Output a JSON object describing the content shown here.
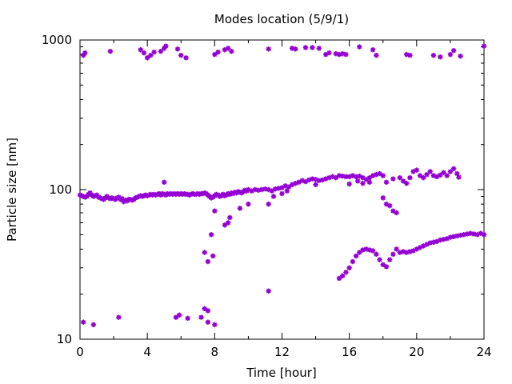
{
  "chart_data": {
    "type": "scatter",
    "title": "Modes location (5/9/1)",
    "xlabel": "Time [hour]",
    "ylabel": "Particle size [nm]",
    "xlim": [
      0,
      24
    ],
    "ylim": [
      10,
      1000
    ],
    "yscale": "log",
    "grid": false,
    "marker_color": "#9400d3",
    "marker": "star",
    "x_ticks": [
      0,
      4,
      8,
      12,
      16,
      20,
      24
    ],
    "x_tick_labels": [
      "0",
      "4",
      "8",
      "12",
      "16",
      "20",
      "24"
    ],
    "y_ticks": [
      10,
      100,
      1000
    ],
    "y_tick_labels": [
      "10",
      "100",
      "1000"
    ],
    "series": [
      {
        "name": "",
        "points": [
          [
            0.0,
            92
          ],
          [
            0.1,
            91
          ],
          [
            0.2,
            90
          ],
          [
            0.3,
            89
          ],
          [
            0.4,
            90
          ],
          [
            0.5,
            93
          ],
          [
            0.6,
            95
          ],
          [
            0.7,
            92
          ],
          [
            0.8,
            90
          ],
          [
            0.9,
            91
          ],
          [
            1.0,
            92
          ],
          [
            1.1,
            89
          ],
          [
            1.2,
            88
          ],
          [
            1.3,
            87
          ],
          [
            1.4,
            86
          ],
          [
            1.5,
            88
          ],
          [
            1.6,
            90
          ],
          [
            1.7,
            88
          ],
          [
            1.8,
            87
          ],
          [
            1.9,
            88
          ],
          [
            2.0,
            87
          ],
          [
            2.1,
            86
          ],
          [
            2.2,
            88
          ],
          [
            2.3,
            89
          ],
          [
            2.4,
            86
          ],
          [
            2.5,
            87
          ],
          [
            2.6,
            83
          ],
          [
            2.7,
            85
          ],
          [
            2.8,
            84
          ],
          [
            2.9,
            86
          ],
          [
            3.0,
            86
          ],
          [
            3.1,
            85
          ],
          [
            3.2,
            86
          ],
          [
            3.3,
            88
          ],
          [
            3.4,
            89
          ],
          [
            3.5,
            90
          ],
          [
            3.6,
            91
          ],
          [
            3.7,
            90
          ],
          [
            3.8,
            91
          ],
          [
            3.9,
            92
          ],
          [
            4.0,
            91
          ],
          [
            4.1,
            92
          ],
          [
            4.2,
            93
          ],
          [
            4.3,
            92
          ],
          [
            4.4,
            93
          ],
          [
            4.5,
            92
          ],
          [
            4.6,
            93
          ],
          [
            4.7,
            94
          ],
          [
            4.8,
            92
          ],
          [
            4.9,
            94
          ],
          [
            5.0,
            93
          ],
          [
            5.1,
            92
          ],
          [
            5.2,
            94
          ],
          [
            5.3,
            93
          ],
          [
            5.4,
            94
          ],
          [
            5.5,
            93
          ],
          [
            5.6,
            94
          ],
          [
            5.7,
            93
          ],
          [
            5.8,
            94
          ],
          [
            5.9,
            93
          ],
          [
            6.0,
            94
          ],
          [
            6.1,
            93
          ],
          [
            6.2,
            94
          ],
          [
            6.3,
            93
          ],
          [
            6.4,
            93
          ],
          [
            6.5,
            92
          ],
          [
            6.6,
            93
          ],
          [
            6.7,
            94
          ],
          [
            6.8,
            93
          ],
          [
            6.9,
            93
          ],
          [
            7.0,
            94
          ],
          [
            7.1,
            93
          ],
          [
            7.2,
            94
          ],
          [
            7.3,
            94
          ],
          [
            7.4,
            95
          ],
          [
            7.5,
            94
          ],
          [
            7.6,
            92
          ],
          [
            7.7,
            90
          ],
          [
            7.8,
            88
          ],
          [
            7.9,
            89
          ],
          [
            8.0,
            91
          ],
          [
            8.1,
            93
          ],
          [
            8.2,
            92
          ],
          [
            8.3,
            90
          ],
          [
            8.4,
            91
          ],
          [
            8.5,
            93
          ],
          [
            8.6,
            91
          ],
          [
            8.7,
            92
          ],
          [
            8.8,
            94
          ],
          [
            8.9,
            93
          ],
          [
            9.0,
            95
          ],
          [
            9.1,
            94
          ],
          [
            9.2,
            96
          ],
          [
            9.3,
            95
          ],
          [
            9.4,
            97
          ],
          [
            9.5,
            96
          ],
          [
            9.6,
            95
          ],
          [
            9.7,
            97
          ],
          [
            9.8,
            99
          ],
          [
            9.9,
            98
          ],
          [
            10.0,
            100
          ],
          [
            10.2,
            98
          ],
          [
            10.4,
            100
          ],
          [
            10.6,
            99
          ],
          [
            10.8,
            100
          ],
          [
            11.0,
            101
          ],
          [
            11.2,
            100
          ],
          [
            11.4,
            98
          ],
          [
            11.6,
            101
          ],
          [
            11.8,
            102
          ],
          [
            12.0,
            103
          ],
          [
            12.2,
            106
          ],
          [
            12.4,
            104
          ],
          [
            12.6,
            108
          ],
          [
            12.8,
            110
          ],
          [
            13.0,
            112
          ],
          [
            13.2,
            115
          ],
          [
            13.4,
            113
          ],
          [
            13.6,
            116
          ],
          [
            13.8,
            118
          ],
          [
            14.0,
            117
          ],
          [
            14.2,
            115
          ],
          [
            14.4,
            116
          ],
          [
            14.6,
            118
          ],
          [
            14.8,
            120
          ],
          [
            15.0,
            122
          ],
          [
            15.2,
            120
          ],
          [
            15.4,
            124
          ],
          [
            15.6,
            123
          ],
          [
            15.8,
            122
          ],
          [
            16.0,
            122
          ],
          [
            16.2,
            124
          ],
          [
            16.4,
            122
          ],
          [
            16.6,
            123
          ],
          [
            16.8,
            120
          ],
          [
            17.0,
            117
          ],
          [
            17.2,
            120
          ],
          [
            17.4,
            124
          ],
          [
            17.6,
            126
          ],
          [
            17.8,
            128
          ],
          [
            18.0,
            124
          ],
          [
            18.2,
            112
          ],
          [
            18.6,
            118
          ],
          [
            19.0,
            120
          ],
          [
            19.2,
            114
          ],
          [
            19.4,
            110
          ],
          [
            19.6,
            120
          ],
          [
            19.8,
            132
          ],
          [
            20.0,
            135
          ],
          [
            20.2,
            124
          ],
          [
            20.4,
            120
          ],
          [
            20.6,
            126
          ],
          [
            20.8,
            132
          ],
          [
            21.0,
            124
          ],
          [
            21.2,
            122
          ],
          [
            21.4,
            125
          ],
          [
            21.6,
            130
          ],
          [
            21.8,
            124
          ],
          [
            22.0,
            132
          ],
          [
            22.2,
            138
          ],
          [
            22.4,
            128
          ],
          [
            22.5,
            121
          ],
          [
            16.5,
            114
          ],
          [
            16.8,
            110
          ],
          [
            17.2,
            112
          ],
          [
            16.0,
            109
          ],
          [
            14.0,
            108
          ],
          [
            15.4,
            25.5
          ],
          [
            15.6,
            26.5
          ],
          [
            15.8,
            28
          ],
          [
            16.0,
            30
          ],
          [
            16.2,
            33
          ],
          [
            16.4,
            36
          ],
          [
            16.6,
            38
          ],
          [
            16.8,
            39.5
          ],
          [
            17.0,
            40
          ],
          [
            17.2,
            39.5
          ],
          [
            17.4,
            39
          ],
          [
            17.6,
            37
          ],
          [
            17.8,
            34
          ],
          [
            18.0,
            31.5
          ],
          [
            18.2,
            30.5
          ],
          [
            18.4,
            34
          ],
          [
            18.6,
            37
          ],
          [
            18.8,
            40
          ],
          [
            19.0,
            38
          ],
          [
            19.2,
            38.5
          ],
          [
            19.4,
            38
          ],
          [
            19.6,
            38.5
          ],
          [
            19.8,
            39
          ],
          [
            20.0,
            40
          ],
          [
            20.2,
            41
          ],
          [
            20.4,
            42
          ],
          [
            20.6,
            43
          ],
          [
            20.8,
            44
          ],
          [
            21.0,
            44.5
          ],
          [
            21.2,
            45
          ],
          [
            21.4,
            46
          ],
          [
            21.6,
            46.5
          ],
          [
            21.8,
            47
          ],
          [
            22.0,
            48
          ],
          [
            22.2,
            48.5
          ],
          [
            22.4,
            49
          ],
          [
            22.6,
            49.5
          ],
          [
            22.8,
            50
          ],
          [
            23.0,
            50.5
          ],
          [
            23.2,
            51
          ],
          [
            23.4,
            50.5
          ],
          [
            23.6,
            50
          ],
          [
            23.8,
            51
          ],
          [
            24.0,
            50
          ],
          [
            18.0,
            88
          ],
          [
            18.2,
            80
          ],
          [
            18.4,
            78
          ],
          [
            18.6,
            72
          ],
          [
            18.8,
            70
          ],
          [
            7.4,
            38
          ],
          [
            7.6,
            33
          ],
          [
            7.8,
            50
          ],
          [
            7.9,
            36
          ],
          [
            8.0,
            72
          ],
          [
            8.6,
            58
          ],
          [
            8.8,
            60
          ],
          [
            8.9,
            65
          ],
          [
            9.5,
            75
          ],
          [
            10.0,
            80
          ],
          [
            11.2,
            80
          ],
          [
            11.5,
            90
          ],
          [
            12.0,
            94
          ],
          [
            12.3,
            98
          ],
          [
            5.0,
            112
          ],
          [
            0.2,
            13
          ],
          [
            0.8,
            12.5
          ],
          [
            2.3,
            14
          ],
          [
            5.7,
            14
          ],
          [
            5.9,
            14.5
          ],
          [
            6.4,
            13.8
          ],
          [
            7.2,
            14
          ],
          [
            7.4,
            16
          ],
          [
            7.6,
            15.5
          ],
          [
            7.6,
            13
          ],
          [
            8.0,
            12.5
          ],
          [
            11.2,
            21
          ],
          [
            0.2,
            790
          ],
          [
            0.3,
            820
          ],
          [
            1.8,
            840
          ],
          [
            3.6,
            860
          ],
          [
            3.8,
            820
          ],
          [
            4.0,
            760
          ],
          [
            4.2,
            790
          ],
          [
            4.4,
            830
          ],
          [
            4.8,
            840
          ],
          [
            5.0,
            880
          ],
          [
            5.1,
            910
          ],
          [
            5.8,
            870
          ],
          [
            6.0,
            790
          ],
          [
            6.3,
            760
          ],
          [
            8.0,
            800
          ],
          [
            8.2,
            830
          ],
          [
            8.6,
            860
          ],
          [
            8.8,
            880
          ],
          [
            9.0,
            840
          ],
          [
            11.2,
            870
          ],
          [
            12.6,
            880
          ],
          [
            12.8,
            870
          ],
          [
            13.4,
            890
          ],
          [
            13.8,
            890
          ],
          [
            14.2,
            880
          ],
          [
            14.6,
            800
          ],
          [
            14.8,
            820
          ],
          [
            15.2,
            810
          ],
          [
            15.4,
            800
          ],
          [
            15.6,
            810
          ],
          [
            15.8,
            800
          ],
          [
            16.6,
            900
          ],
          [
            17.4,
            860
          ],
          [
            17.6,
            790
          ],
          [
            19.4,
            800
          ],
          [
            19.6,
            790
          ],
          [
            21.0,
            790
          ],
          [
            21.4,
            770
          ],
          [
            22.0,
            800
          ],
          [
            22.2,
            850
          ],
          [
            22.6,
            780
          ],
          [
            24.0,
            910
          ]
        ]
      }
    ]
  }
}
